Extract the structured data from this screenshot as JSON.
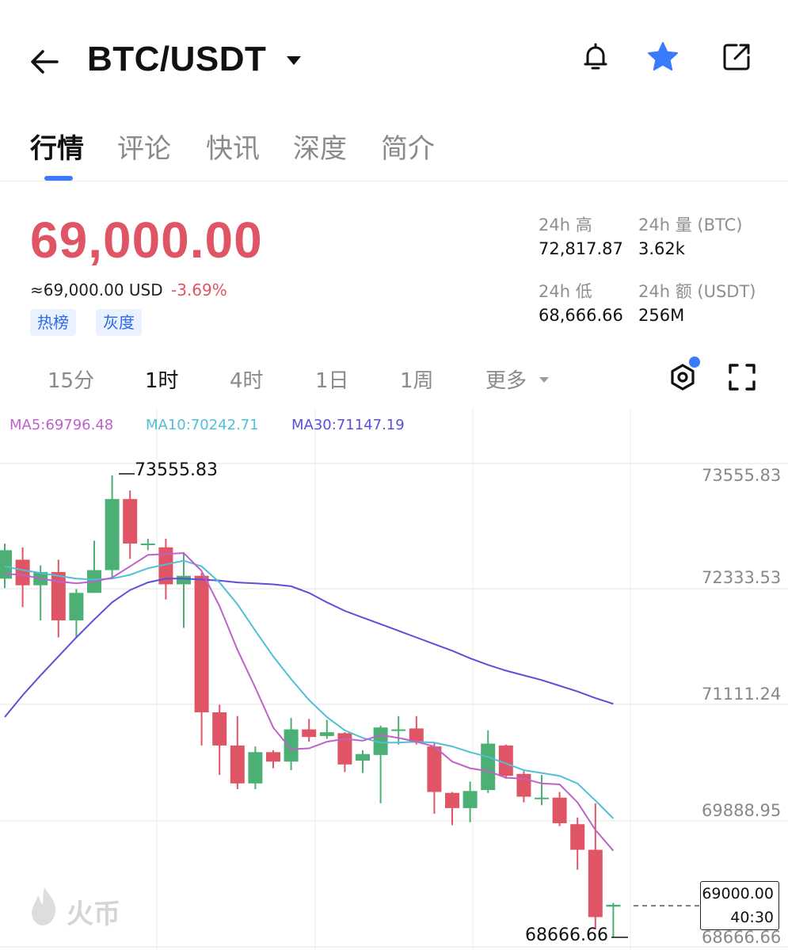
{
  "header": {
    "pair": "BTC/USDT",
    "icons": [
      "back-arrow-icon",
      "caret-down-icon",
      "bell-icon",
      "star-icon",
      "share-icon"
    ],
    "accent": "#3a7bfa"
  },
  "tabs": [
    "行情",
    "评论",
    "快讯",
    "深度",
    "简介"
  ],
  "active_tab": "行情",
  "price": {
    "last": "69,000.00",
    "usd": "≈69,000.00 USD",
    "change": "-3.69%",
    "down_color": "#e05565",
    "up_color": "#4caf73",
    "tags": [
      "热榜",
      "灰度"
    ]
  },
  "stats": {
    "high_label": "24h 高",
    "high_value": "72,817.87",
    "vol_label": "24h 量 (BTC)",
    "vol_value": "3.62k",
    "low_label": "24h 低",
    "low_value": "68,666.66",
    "amount_label": "24h 额 (USDT)",
    "amount_value": "256M"
  },
  "intervals": [
    "15分",
    "1时",
    "4时",
    "1日",
    "1周",
    "更多"
  ],
  "active_interval": "1时",
  "toolbar_icons": [
    "indicator-settings-icon",
    "fullscreen-icon"
  ],
  "chart_data": {
    "type": "candlestick",
    "ma": [
      {
        "label": "MA5:69796.48",
        "color": "#c061cb"
      },
      {
        "label": "MA10:70242.71",
        "color": "#4fc0d6"
      },
      {
        "label": "MA30:71147.19",
        "color": "#5b4fdc"
      }
    ],
    "price_axis": [
      "73555.83",
      "72333.53",
      "71111.24",
      "69888.95",
      "68666.66"
    ],
    "ylim": [
      68666.66,
      73555.83
    ],
    "high_marker": "73555.83",
    "low_marker": "68666.66",
    "current_price": "69000.00",
    "countdown": "40:30",
    "watermark": "火币",
    "candles": [
      {
        "o": 72450,
        "c": 72750,
        "h": 72820,
        "l": 72350
      },
      {
        "o": 72650,
        "c": 72380,
        "h": 72780,
        "l": 72150
      },
      {
        "o": 72380,
        "c": 72520,
        "h": 72590,
        "l": 72010
      },
      {
        "o": 72520,
        "c": 72010,
        "h": 72650,
        "l": 71830
      },
      {
        "o": 72010,
        "c": 72300,
        "h": 72340,
        "l": 71830
      },
      {
        "o": 72300,
        "c": 72540,
        "h": 72850,
        "l": 72300
      },
      {
        "o": 72540,
        "c": 73290,
        "h": 73540,
        "l": 72460
      },
      {
        "o": 73290,
        "c": 72820,
        "h": 73380,
        "l": 72660
      },
      {
        "o": 72820,
        "c": 72820,
        "h": 72870,
        "l": 72750
      },
      {
        "o": 72780,
        "c": 72390,
        "h": 72870,
        "l": 72230
      },
      {
        "o": 72390,
        "c": 72480,
        "h": 72730,
        "l": 71930
      },
      {
        "o": 72480,
        "c": 71040,
        "h": 72510,
        "l": 70690
      },
      {
        "o": 71040,
        "c": 70690,
        "h": 71120,
        "l": 70380
      },
      {
        "o": 70690,
        "c": 70290,
        "h": 71000,
        "l": 70230
      },
      {
        "o": 70290,
        "c": 70620,
        "h": 70680,
        "l": 70230
      },
      {
        "o": 70620,
        "c": 70520,
        "h": 70640,
        "l": 70450
      },
      {
        "o": 70520,
        "c": 70860,
        "h": 70980,
        "l": 70430
      },
      {
        "o": 70860,
        "c": 70780,
        "h": 70970,
        "l": 70730
      },
      {
        "o": 70790,
        "c": 70830,
        "h": 70960,
        "l": 70760
      },
      {
        "o": 70820,
        "c": 70490,
        "h": 70830,
        "l": 70410
      },
      {
        "o": 70530,
        "c": 70600,
        "h": 70640,
        "l": 70400
      },
      {
        "o": 70590,
        "c": 70880,
        "h": 70900,
        "l": 70080
      },
      {
        "o": 70860,
        "c": 70860,
        "h": 71000,
        "l": 70700
      },
      {
        "o": 70870,
        "c": 70720,
        "h": 71000,
        "l": 70700
      },
      {
        "o": 70680,
        "c": 70200,
        "h": 70720,
        "l": 69970
      },
      {
        "o": 70190,
        "c": 70030,
        "h": 70200,
        "l": 69850
      },
      {
        "o": 70030,
        "c": 70210,
        "h": 70310,
        "l": 69880
      },
      {
        "o": 70220,
        "c": 70710,
        "h": 70850,
        "l": 70190
      },
      {
        "o": 70690,
        "c": 70370,
        "h": 70700,
        "l": 70340
      },
      {
        "o": 70390,
        "c": 70150,
        "h": 70420,
        "l": 70090
      },
      {
        "o": 70140,
        "c": 70140,
        "h": 70380,
        "l": 70060
      },
      {
        "o": 70140,
        "c": 69870,
        "h": 70200,
        "l": 69840
      },
      {
        "o": 69860,
        "c": 69590,
        "h": 69930,
        "l": 69380
      },
      {
        "o": 69590,
        "c": 68880,
        "h": 70080,
        "l": 68750
      },
      {
        "o": 68990,
        "c": 69010,
        "h": 69030,
        "l": 68666.66
      }
    ],
    "ma5_line": [
      72500,
      72490,
      72450,
      72420,
      72400,
      72420,
      72460,
      72580,
      72700,
      72710,
      72720,
      72530,
      72160,
      71700,
      71300,
      70880,
      70650,
      70660,
      70730,
      70760,
      70740,
      70800,
      70770,
      70730,
      70680,
      70520,
      70450,
      70420,
      70350,
      70340,
      70290,
      70280,
      70090,
      69800,
      69580
    ],
    "ma10_line": [
      72580,
      72540,
      72510,
      72480,
      72450,
      72440,
      72450,
      72490,
      72560,
      72600,
      72640,
      72580,
      72410,
      72180,
      71900,
      71630,
      71390,
      71170,
      70990,
      70850,
      70770,
      70720,
      70720,
      70730,
      70720,
      70680,
      70620,
      70570,
      70500,
      70430,
      70400,
      70370,
      70290,
      70110,
      69920
    ],
    "ma30_line": [
      70990,
      71220,
      71430,
      71630,
      71830,
      72020,
      72200,
      72330,
      72410,
      72450,
      72450,
      72440,
      72430,
      72410,
      72400,
      72390,
      72370,
      72300,
      72200,
      72110,
      72040,
      71970,
      71900,
      71830,
      71760,
      71690,
      71610,
      71540,
      71480,
      71430,
      71380,
      71320,
      71260,
      71190,
      71130
    ]
  }
}
